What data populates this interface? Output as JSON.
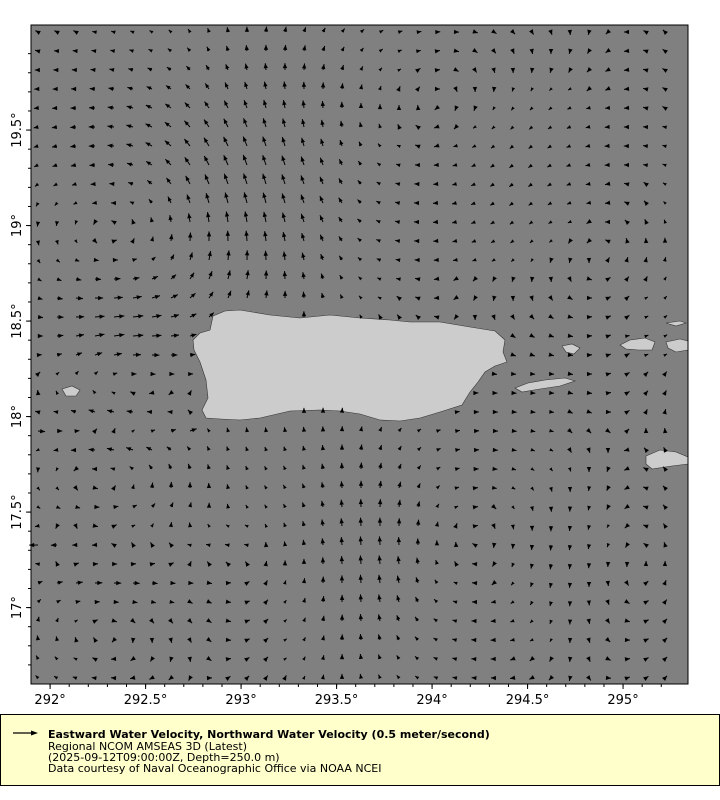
{
  "chart_data": {
    "type": "vector",
    "title": "Eastward Water Velocity, Northward Water Velocity (0.5 meter/second)",
    "xlabel": "",
    "ylabel": "",
    "xlim": [
      291.9,
      295.34
    ],
    "ylim": [
      16.6,
      20.05
    ],
    "x_ticks": [
      "292°",
      "292.5°",
      "293°",
      "293.5°",
      "294°",
      "294.5°",
      "295°"
    ],
    "x_tick_values": [
      292,
      292.5,
      293,
      293.5,
      294,
      294.5,
      295
    ],
    "y_ticks": [
      "17°",
      "17.5°",
      "18°",
      "18.5°",
      "19°",
      "19.5°"
    ],
    "y_tick_values": [
      17,
      17.5,
      18,
      18.5,
      19,
      19.5
    ],
    "reference_speed_m_s": 0.5,
    "grid": false,
    "legend_position": "bottom"
  },
  "legend": {
    "title": "Eastward Water Velocity, Northward Water Velocity (0.5 meter/second)",
    "dataset": "Regional NCOM AMSEAS 3D (Latest)",
    "time_depth": "(2025-09-12T09:00:00Z, Depth=250.0 m)",
    "credit": "Data courtesy of Naval Oceanographic Office via NOAA NCEI"
  },
  "colors": {
    "ocean": "#808080",
    "land": "#cccccc",
    "vectors": "#000000",
    "legend_bg": "#ffffcc"
  }
}
